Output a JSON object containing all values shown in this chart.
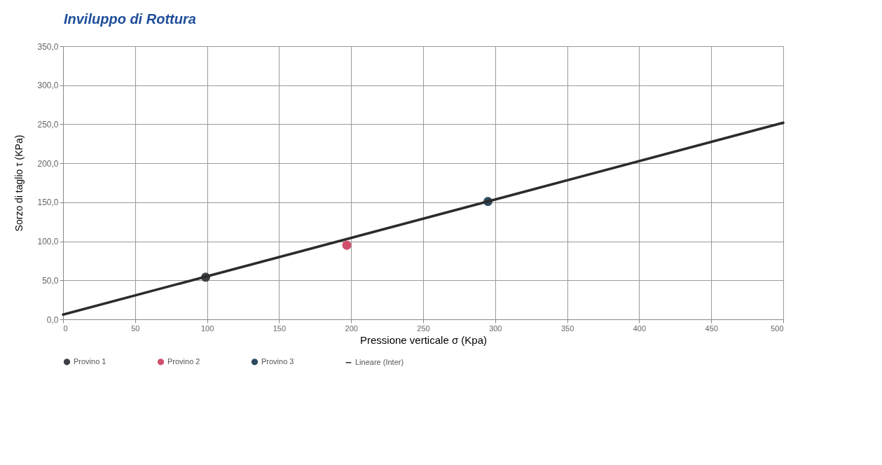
{
  "chart_data": {
    "type": "scatter",
    "title": "Inviluppo di Rottura",
    "xlabel": "Pressione verticale  σ  (Kpa)",
    "ylabel": "Sorzo di  taglio τ   (KPa)",
    "grid": true,
    "legend": "bottom",
    "xlim": [
      0,
      500
    ],
    "xticks": [
      0,
      50,
      100,
      150,
      200,
      250,
      300,
      350,
      400,
      450,
      500
    ],
    "ylim": [
      0,
      350
    ],
    "yticks": [
      {
        "value": 0,
        "label": "0,0"
      },
      {
        "value": 50,
        "label": "50,0"
      },
      {
        "value": 100,
        "label": "100,0"
      },
      {
        "value": 150,
        "label": "150,0"
      },
      {
        "value": 200,
        "label": "200,0"
      },
      {
        "value": 250,
        "label": "250,0"
      },
      {
        "value": 300,
        "label": "300,0"
      },
      {
        "value": 350,
        "label": "350,0"
      }
    ],
    "series": [
      {
        "name": "Provino 1",
        "color": "#3c4046",
        "marker": "circle",
        "x": [
          99
        ],
        "values": [
          54
        ]
      },
      {
        "name": "Provino 2",
        "color": "#d0506e",
        "marker": "circle",
        "x": [
          197
        ],
        "values": [
          95
        ]
      },
      {
        "name": "Provino 3",
        "color": "#2e4a5e",
        "marker": "circle",
        "x": [
          295
        ],
        "values": [
          151
        ]
      },
      {
        "name": "Lineare (Inter)",
        "type": "line",
        "color": "#2b2b2b",
        "x": [
          0,
          500
        ],
        "values": [
          6,
          252
        ],
        "line_style": "solid"
      }
    ]
  }
}
